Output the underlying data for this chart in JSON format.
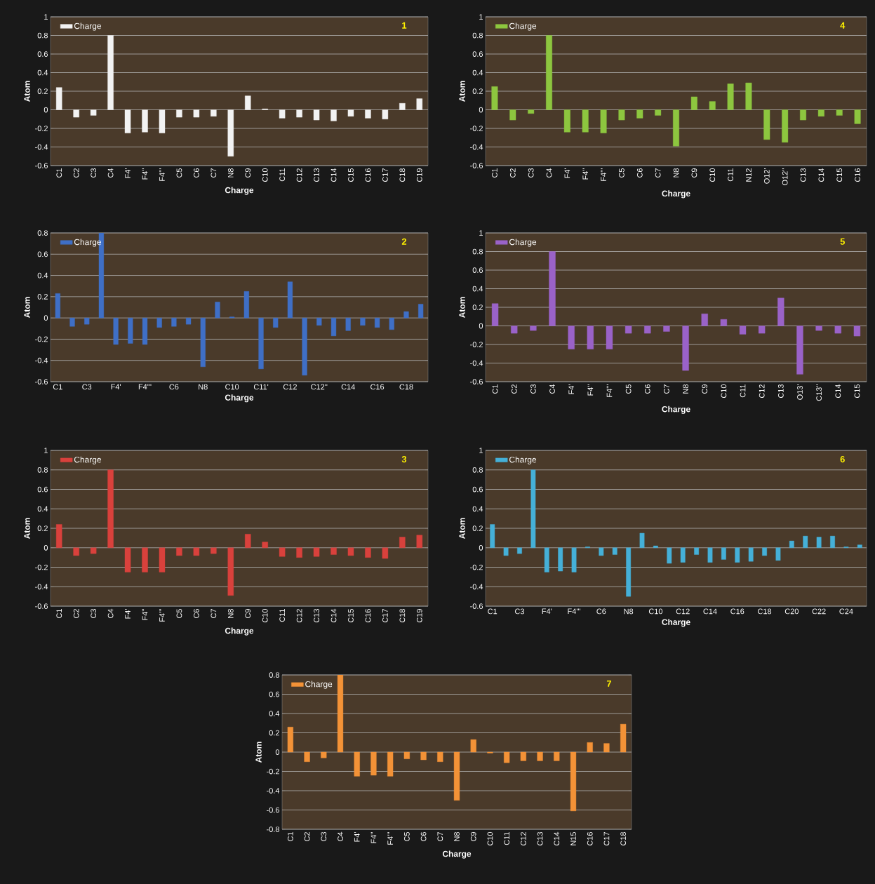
{
  "chart_data": [
    {
      "type": "bar",
      "categories": [
        "C1",
        "C2",
        "C3",
        "C4",
        "F4'",
        "F4''",
        "F4'''",
        "C5",
        "C6",
        "C7",
        "N8",
        "C9",
        "C10",
        "C11",
        "C12",
        "C13",
        "C14",
        "C15",
        "C16",
        "C17",
        "C18",
        "C19"
      ],
      "series": [
        {
          "name": "Charge",
          "color": "#f2f2f2",
          "values": [
            0.24,
            -0.08,
            -0.06,
            0.8,
            -0.25,
            -0.24,
            -0.25,
            -0.08,
            -0.08,
            -0.07,
            -0.5,
            0.15,
            0.01,
            -0.09,
            -0.08,
            -0.11,
            -0.12,
            -0.07,
            -0.09,
            -0.1,
            0.07,
            0.12
          ]
        }
      ],
      "xlabel": "Charge",
      "ylabel": "Atom",
      "ylim": [
        -0.6,
        1
      ],
      "yticks": [
        -0.6,
        -0.4,
        -0.2,
        0,
        0.2,
        0.4,
        0.6,
        0.8,
        1
      ],
      "grid": "y",
      "legend": "top left",
      "annotations": [
        "1"
      ]
    },
    {
      "type": "bar",
      "categories": [
        "C1",
        "C2",
        "C3",
        "C4",
        "F4'",
        "F4''",
        "F4'''",
        "C5",
        "C6",
        "C7",
        "N8",
        "C9",
        "C10",
        "C11",
        "N12",
        "O12'",
        "O12''",
        "C13",
        "C14",
        "C15",
        "C16"
      ],
      "series": [
        {
          "name": "Charge",
          "color": "#8dc63f",
          "values": [
            0.25,
            -0.11,
            -0.04,
            0.8,
            -0.24,
            -0.24,
            -0.25,
            -0.11,
            -0.09,
            -0.06,
            -0.39,
            0.14,
            0.09,
            0.28,
            0.29,
            -0.32,
            -0.35,
            -0.11,
            -0.07,
            -0.06,
            -0.15
          ]
        }
      ],
      "xlabel": "Charge",
      "ylabel": "Atom",
      "ylim": [
        -0.6,
        1
      ],
      "yticks": [
        -0.6,
        -0.4,
        -0.2,
        0,
        0.2,
        0.4,
        0.6,
        0.8,
        1
      ],
      "grid": "y",
      "legend": "top left",
      "annotations": [
        "4"
      ]
    },
    {
      "type": "bar",
      "categories": [
        "C1",
        null,
        "C3",
        null,
        "F4'",
        null,
        "F4'''",
        null,
        "C6",
        null,
        "N8",
        null,
        "C10",
        null,
        "C11'",
        null,
        "C12",
        null,
        "C12''",
        null,
        "C14",
        null,
        "C16",
        null,
        "C18",
        null
      ],
      "series": [
        {
          "name": "Charge",
          "color": "#3f6fc6",
          "values": [
            0.23,
            -0.08,
            -0.06,
            0.8,
            -0.25,
            -0.24,
            -0.25,
            -0.09,
            -0.08,
            -0.06,
            -0.46,
            0.15,
            0.01,
            0.25,
            -0.48,
            -0.09,
            0.34,
            -0.54,
            -0.07,
            -0.17,
            -0.12,
            -0.07,
            -0.09,
            -0.11,
            0.06,
            0.13
          ]
        }
      ],
      "xlabel": "Charge",
      "ylabel": "Atom",
      "ylim": [
        -0.6,
        0.8
      ],
      "yticks": [
        -0.6,
        -0.4,
        -0.2,
        0,
        0.2,
        0.4,
        0.6,
        0.8
      ],
      "grid": "y",
      "legend": "top left",
      "annotations": [
        "2"
      ]
    },
    {
      "type": "bar",
      "categories": [
        "C1",
        "C2",
        "C3",
        "C4",
        "F4'",
        "F4''",
        "F4'''",
        "C5",
        "C6",
        "C7",
        "N8",
        "C9",
        "C10",
        "C11",
        "C12",
        "C13",
        "O13'",
        "C13''",
        "C14",
        "C15"
      ],
      "series": [
        {
          "name": "Charge",
          "color": "#9a62c8",
          "values": [
            0.24,
            -0.08,
            -0.05,
            0.8,
            -0.25,
            -0.25,
            -0.25,
            -0.08,
            -0.08,
            -0.06,
            -0.48,
            0.13,
            0.07,
            -0.09,
            -0.08,
            0.3,
            -0.52,
            -0.05,
            -0.08,
            -0.11
          ]
        }
      ],
      "xlabel": "Charge",
      "ylabel": "Atom",
      "ylim": [
        -0.6,
        1
      ],
      "yticks": [
        -0.6,
        -0.4,
        -0.2,
        0,
        0.2,
        0.4,
        0.6,
        0.8,
        1
      ],
      "grid": "y",
      "legend": "top left",
      "annotations": [
        "5"
      ]
    },
    {
      "type": "bar",
      "categories": [
        "C1",
        "C2",
        "C3",
        "C4",
        "F4'",
        "F4''",
        "F4'''",
        "C5",
        "C6",
        "C7",
        "N8",
        "C9",
        "C10",
        "C11",
        "C12",
        "C13",
        "C14",
        "C15",
        "C16",
        "C17",
        "C18",
        "C19"
      ],
      "series": [
        {
          "name": "Charge",
          "color": "#d9413c",
          "values": [
            0.24,
            -0.08,
            -0.06,
            0.8,
            -0.25,
            -0.25,
            -0.25,
            -0.08,
            -0.08,
            -0.06,
            -0.49,
            0.14,
            0.06,
            -0.09,
            -0.1,
            -0.09,
            -0.07,
            -0.08,
            -0.1,
            -0.11,
            0.11,
            0.13
          ]
        }
      ],
      "xlabel": "Charge",
      "ylabel": "Atom",
      "ylim": [
        -0.6,
        1
      ],
      "yticks": [
        -0.6,
        -0.4,
        -0.2,
        0,
        0.2,
        0.4,
        0.6,
        0.8,
        1
      ],
      "grid": "y",
      "legend": "top left",
      "annotations": [
        "3"
      ]
    },
    {
      "type": "bar",
      "categories": [
        "C1",
        null,
        "C3",
        null,
        "F4'",
        null,
        "F4'''",
        null,
        "C6",
        null,
        "N8",
        null,
        "C10",
        null,
        "C12",
        null,
        "C14",
        null,
        "C16",
        null,
        "C18",
        null,
        "C20",
        null,
        "C22",
        null,
        "C24",
        null
      ],
      "series": [
        {
          "name": "Charge",
          "color": "#45b0d8",
          "values": [
            0.24,
            -0.08,
            -0.06,
            0.8,
            -0.25,
            -0.24,
            -0.25,
            0.01,
            -0.08,
            -0.07,
            -0.5,
            0.15,
            0.02,
            -0.16,
            -0.15,
            -0.07,
            -0.15,
            -0.12,
            -0.15,
            -0.14,
            -0.08,
            -0.13,
            0.07,
            0.12,
            0.11,
            0.12,
            0.01,
            0.03
          ]
        }
      ],
      "xlabel": "Charge",
      "ylabel": "Atom",
      "ylim": [
        -0.6,
        1
      ],
      "yticks": [
        -0.6,
        -0.4,
        -0.2,
        0,
        0.2,
        0.4,
        0.6,
        0.8,
        1
      ],
      "grid": "y",
      "legend": "top left",
      "annotations": [
        "6"
      ]
    },
    {
      "type": "bar",
      "categories": [
        "C1",
        "C2",
        "C3",
        "C4",
        "F4'",
        "F4''",
        "F4'''",
        "C5",
        "C6",
        "C7",
        "N8",
        "C9",
        "C10",
        "C11",
        "C12",
        "C13",
        "C14",
        "N15",
        "C16",
        "C17",
        "C18"
      ],
      "series": [
        {
          "name": "Charge",
          "color": "#f39237",
          "values": [
            0.26,
            -0.1,
            -0.06,
            0.8,
            -0.25,
            -0.24,
            -0.25,
            -0.07,
            -0.08,
            -0.1,
            -0.5,
            0.13,
            -0.01,
            -0.11,
            -0.09,
            -0.09,
            -0.09,
            -0.61,
            0.1,
            0.09,
            0.29
          ]
        }
      ],
      "xlabel": "Charge",
      "ylabel": "Atom",
      "ylim": [
        -0.8,
        0.8
      ],
      "yticks": [
        -0.8,
        -0.6,
        -0.4,
        -0.2,
        0,
        0.2,
        0.4,
        0.6,
        0.8
      ],
      "grid": "y",
      "legend": "top left",
      "annotations": [
        "7"
      ]
    }
  ]
}
